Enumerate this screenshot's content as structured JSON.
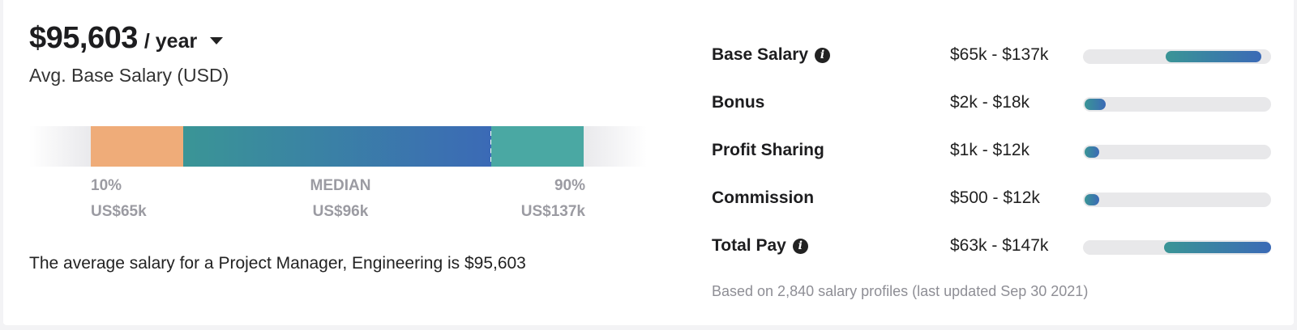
{
  "summary": {
    "amount": "$95,603",
    "period": "/ year",
    "label": "Avg. Base Salary (USD)",
    "description": "The average salary for a Project Manager, Engineering is $95,603"
  },
  "distribution": {
    "low": {
      "pct": "10%",
      "value": "US$65k"
    },
    "median": {
      "pct": "MEDIAN",
      "value": "US$96k"
    },
    "high": {
      "pct": "90%",
      "value": "US$137k"
    },
    "colors": {
      "low": "#efac79",
      "mid_start": "#3a9596",
      "mid_end": "#3b6ab6",
      "high": "#4aa8a3"
    }
  },
  "components": [
    {
      "name": "Base Salary",
      "info": true,
      "range": "$65k - $137k",
      "bar_start": 0.44,
      "bar_end": 0.95
    },
    {
      "name": "Bonus",
      "info": false,
      "range": "$2k - $18k",
      "bar_start": 0.01,
      "bar_end": 0.12
    },
    {
      "name": "Profit Sharing",
      "info": false,
      "range": "$1k - $12k",
      "bar_start": 0.01,
      "bar_end": 0.05
    },
    {
      "name": "Commission",
      "info": false,
      "range": "$500 - $12k",
      "bar_start": 0.01,
      "bar_end": 0.05
    },
    {
      "name": "Total Pay",
      "info": true,
      "range": "$63k - $147k",
      "bar_start": 0.43,
      "bar_end": 1.0
    }
  ],
  "footnote": "Based on 2,840 salary profiles (last updated Sep 30 2021)",
  "icons": {
    "info": "info-circle-icon",
    "dropdown": "chevron-down-icon"
  }
}
